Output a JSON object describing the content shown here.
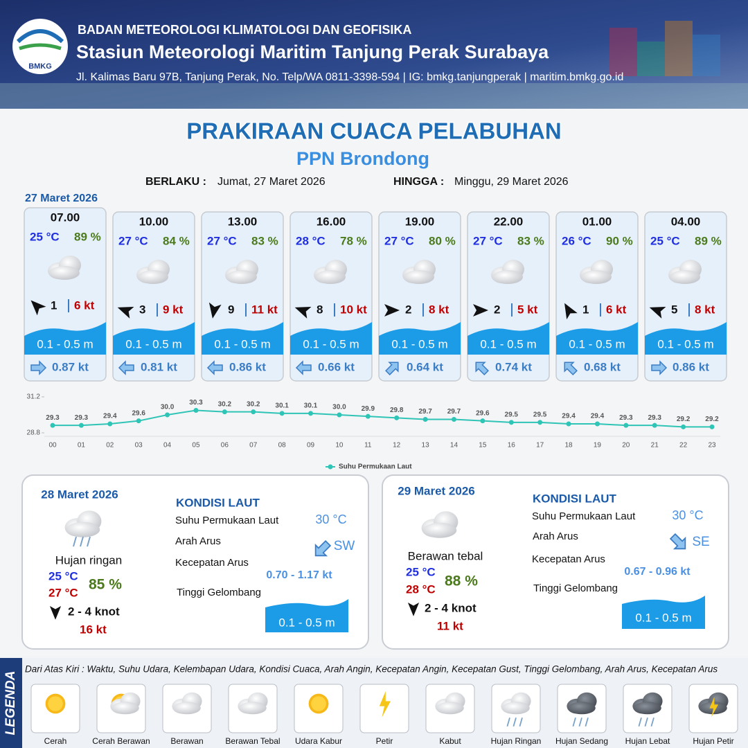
{
  "header": {
    "logo_text": "BMKG",
    "agency": "BADAN METEOROLOGI KLIMATOLOGI DAN GEOFISIKA",
    "station": "Stasiun Meteorologi Maritim Tanjung Perak Surabaya",
    "address": "Jl. Kalimas Baru 97B, Tanjung Perak, No. Telp/WA 0811-3398-594 | IG: bmkg.tanjungperak | maritim.bmkg.go.id"
  },
  "title": "PRAKIRAAN CUACA PELABUHAN",
  "subtitle": "PPN Brondong",
  "validity": {
    "from_label": "BERLAKU :",
    "from": "Jumat, 27 Maret 2026",
    "to_label": "HINGGA :",
    "to": "Minggu, 29 Maret 2026"
  },
  "day_date": "27 Maret 2026",
  "forecasts": [
    {
      "time": "07.00",
      "temp": "25 °C",
      "humidity": "89 %",
      "wind": "1",
      "gust": "6 kt",
      "wave": "0.1 - 0.5 m",
      "current": "0.87 kt"
    },
    {
      "time": "10.00",
      "temp": "27 °C",
      "humidity": "84 %",
      "wind": "3",
      "gust": "9 kt",
      "wave": "0.1 - 0.5 m",
      "current": "0.81 kt"
    },
    {
      "time": "13.00",
      "temp": "27 °C",
      "humidity": "83 %",
      "wind": "9",
      "gust": "11 kt",
      "wave": "0.1 - 0.5 m",
      "current": "0.86 kt"
    },
    {
      "time": "16.00",
      "temp": "28 °C",
      "humidity": "78 %",
      "wind": "8",
      "gust": "10 kt",
      "wave": "0.1 - 0.5 m",
      "current": "0.66 kt"
    },
    {
      "time": "19.00",
      "temp": "27 °C",
      "humidity": "80 %",
      "wind": "2",
      "gust": "8 kt",
      "wave": "0.1 - 0.5 m",
      "current": "0.64 kt"
    },
    {
      "time": "22.00",
      "temp": "27 °C",
      "humidity": "83 %",
      "wind": "2",
      "gust": "5 kt",
      "wave": "0.1 - 0.5 m",
      "current": "0.74 kt"
    },
    {
      "time": "01.00",
      "temp": "26 °C",
      "humidity": "90 %",
      "wind": "1",
      "gust": "6 kt",
      "wave": "0.1 - 0.5 m",
      "current": "0.68 kt"
    },
    {
      "time": "04.00",
      "temp": "25 °C",
      "humidity": "89 %",
      "wind": "5",
      "gust": "8 kt",
      "wave": "0.1 - 0.5 m",
      "current": "0.86 kt"
    }
  ],
  "chart_data": {
    "type": "line",
    "categories": [
      "00",
      "01",
      "02",
      "03",
      "04",
      "05",
      "06",
      "07",
      "08",
      "09",
      "10",
      "11",
      "12",
      "13",
      "14",
      "15",
      "16",
      "17",
      "18",
      "19",
      "20",
      "21",
      "22",
      "23"
    ],
    "series": [
      {
        "name": "Suhu Permukaan Laut",
        "color": "#2ec4b6",
        "values": [
          29.3,
          29.3,
          29.4,
          29.6,
          30.0,
          30.3,
          30.2,
          30.2,
          30.1,
          30.1,
          30.0,
          29.9,
          29.8,
          29.7,
          29.7,
          29.6,
          29.5,
          29.5,
          29.4,
          29.4,
          29.3,
          29.3,
          29.2,
          29.2
        ],
        "value_labels": [
          "29.3",
          "29.3",
          "29.4",
          "29.6",
          "30.0",
          "30.3",
          "30.2",
          "30.2",
          "30.1",
          "30.1",
          "30.0",
          "29.9",
          "29.8",
          "29.7",
          "29.7",
          "29.6",
          "29.5",
          "29.5",
          "29.4",
          "29.4",
          "29.3",
          "29.3",
          "29.2",
          "29.2"
        ]
      }
    ],
    "ylim": [
      28.8,
      31.2
    ],
    "yticks": [
      28.8,
      31.2
    ],
    "legend": "bottom"
  },
  "days": [
    {
      "date": "28 Maret 2026",
      "condition": "Hujan ringan",
      "temp_min": "25 °C",
      "temp_max": "27 °C",
      "humidity": "85 %",
      "wind": "2  - 4 knot",
      "gust": "16 kt",
      "sea_title": "KONDISI LAUT",
      "sst_label": "Suhu Permukaan Laut",
      "sst": "30 °C",
      "current_dir_label": "Arah Arus",
      "current_dir": "SW",
      "current_speed_label": "Kecepatan Arus",
      "current_speed": "0.70  - 1.17 kt",
      "wave_label": "Tinggi Gelombang",
      "wave": "0.1 - 0.5 m"
    },
    {
      "date": "29 Maret 2026",
      "condition": "Berawan tebal",
      "temp_min": "25 °C",
      "temp_max": "28 °C",
      "humidity": "88 %",
      "wind": "2  - 4 knot",
      "gust": "11 kt",
      "sea_title": "KONDISI LAUT",
      "sst_label": "Suhu Permukaan Laut",
      "sst": "30 °C",
      "current_dir_label": "Arah Arus",
      "current_dir": "SE",
      "current_speed_label": "Kecepatan Arus",
      "current_speed": "0.67 - 0.96 kt",
      "wave_label": "Tinggi Gelombang",
      "wave": "0.1 - 0.5 m"
    }
  ],
  "legend": {
    "title": "LEGENDA",
    "description": "Dari Atas Kiri : Waktu, Suhu Udara, Kelembapan Udara, Kondisi Cuaca, Arah Angin, Kecepatan Angin, Kecepatan Gust, Tinggi Gelombang, Arah Arus, Kecepatan Arus",
    "items": [
      "Cerah",
      "Cerah Berawan",
      "Berawan",
      "Berawan Tebal",
      "Udara Kabur",
      "Petir",
      "Kabut",
      "Hujan Ringan",
      "Hujan Sedang",
      "Hujan Lebat",
      "Hujan Petir"
    ]
  }
}
